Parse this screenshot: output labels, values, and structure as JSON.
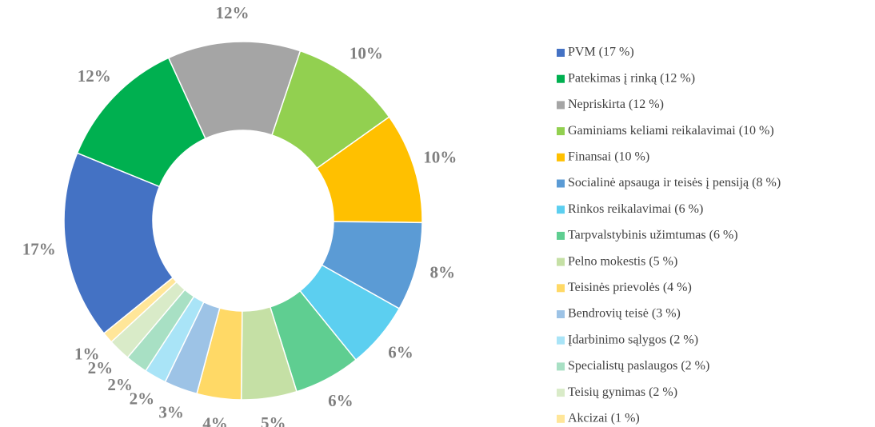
{
  "chart_data": {
    "type": "pie",
    "donut": true,
    "categories": [
      "PVM (17 %)",
      "Patekimas į rinką (12 %)",
      "Nepriskirta (12 %)",
      "Gaminiams keliami reikalavimai (10 %)",
      "Finansai (10 %)",
      "Socialinė apsauga ir teisės į pensiją (8 %)",
      "Rinkos reikalavimai (6 %)",
      "Tarpvalstybinis užimtumas (6 %)",
      "Pelno mokestis (5 %)",
      "Teisinės prievolės (4 %)",
      "Bendrovių teisė (3 %)",
      "Įdarbinimo sąlygos (2 %)",
      "Specialistų paslaugos (2 %)",
      "Teisių gynimas (2 %)",
      "Akcizai (1 %)"
    ],
    "values": [
      17,
      12,
      12,
      10,
      10,
      8,
      6,
      6,
      5,
      4,
      3,
      2,
      2,
      2,
      1
    ],
    "value_labels": [
      "17%",
      "12%",
      "12%",
      "10%",
      "10%",
      "8%",
      "6%",
      "6%",
      "5%",
      "4%",
      "3%",
      "2%",
      "2%",
      "2%",
      "1%"
    ],
    "colors": [
      "#4472c4",
      "#00b050",
      "#a5a5a5",
      "#92d050",
      "#ffc000",
      "#5b9bd5",
      "#5ccff0",
      "#5fce91",
      "#c5e0a5",
      "#ffd966",
      "#9dc3e6",
      "#a9e4f7",
      "#a8e0c4",
      "#d9ebc8",
      "#ffe699"
    ],
    "legend": "right"
  }
}
